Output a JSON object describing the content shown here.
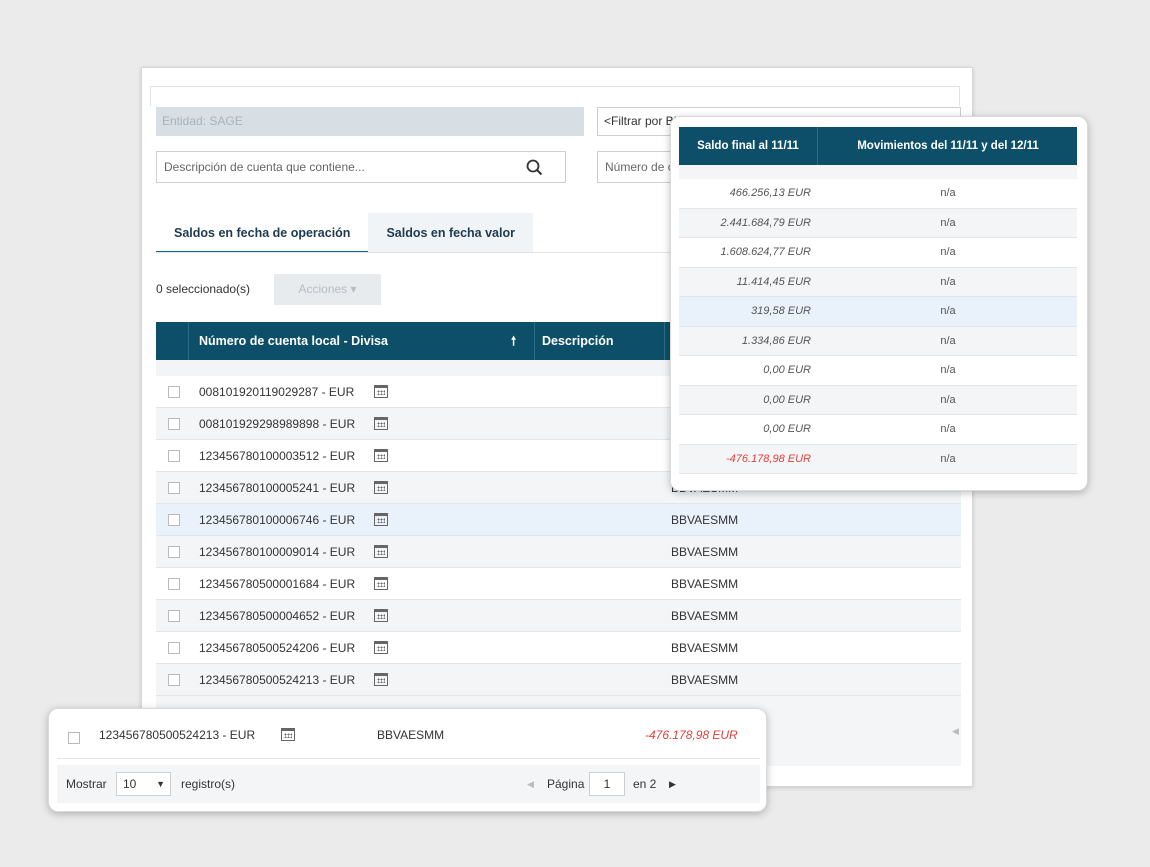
{
  "filters": {
    "entity_label": "Entidad: SAGE",
    "bic_placeholder": "<Filtrar por BIC del banco>",
    "description_placeholder": "Descripción de cuenta que contiene...",
    "account_number_placeholder": "Número de cuenta que contiene..."
  },
  "tabs": [
    {
      "label": "Saldos en fecha de operación",
      "active": true
    },
    {
      "label": "Saldos en fecha valor",
      "active": false
    }
  ],
  "toolbar": {
    "selected_count": "0 seleccionado(s)",
    "actions_label": "Acciones ▾"
  },
  "table": {
    "columns": [
      "Número de cuenta local - Divisa",
      "Descripción"
    ],
    "sort_icon": "arrow-up-icon",
    "rows": [
      {
        "account": "008101920119029287 - EUR",
        "bic": ""
      },
      {
        "account": "008101929298989898 - EUR",
        "bic": ""
      },
      {
        "account": "123456780100003512 - EUR",
        "bic": ""
      },
      {
        "account": "123456780100005241 - EUR",
        "bic": "BBVAESMM"
      },
      {
        "account": "123456780100006746 - EUR",
        "bic": "BBVAESMM"
      },
      {
        "account": "123456780100009014 - EUR",
        "bic": "BBVAESMM"
      },
      {
        "account": "123456780500001684 - EUR",
        "bic": "BBVAESMM"
      },
      {
        "account": "123456780500004652 - EUR",
        "bic": "BBVAESMM"
      },
      {
        "account": "123456780500524206 - EUR",
        "bic": "BBVAESMM"
      },
      {
        "account": "123456780500524213 - EUR",
        "bic": "BBVAESMM"
      }
    ]
  },
  "balances_popup": {
    "col_final": "Saldo final al 11/11",
    "col_movements": "Movimientos del 11/11 y del 12/11",
    "rows": [
      {
        "final": "466.256,13 EUR",
        "mov": "n/a"
      },
      {
        "final": "2.441.684,79 EUR",
        "mov": "n/a"
      },
      {
        "final": "1.608.624,77 EUR",
        "mov": "n/a"
      },
      {
        "final": "11.414,45 EUR",
        "mov": "n/a"
      },
      {
        "final": "319,58 EUR",
        "mov": "n/a"
      },
      {
        "final": "1.334,86 EUR",
        "mov": "n/a"
      },
      {
        "final": "0,00 EUR",
        "mov": "n/a"
      },
      {
        "final": "0,00 EUR",
        "mov": "n/a"
      },
      {
        "final": "0,00 EUR",
        "mov": "n/a"
      },
      {
        "final": "-476.178,98 EUR",
        "mov": "n/a"
      }
    ]
  },
  "footer_popup": {
    "account": "123456780500524213 - EUR",
    "bic": "BBVAESMM",
    "balance": "-476.178,98 EUR",
    "show_label": "Mostrar",
    "page_size": "10",
    "records_label": "registro(s)",
    "page_label": "Página",
    "page_current": "1",
    "page_total": "en 2"
  },
  "colors": {
    "header_bg": "#0d4f68",
    "negative": "#e0403a",
    "highlight_row": "#e9f2fb"
  }
}
